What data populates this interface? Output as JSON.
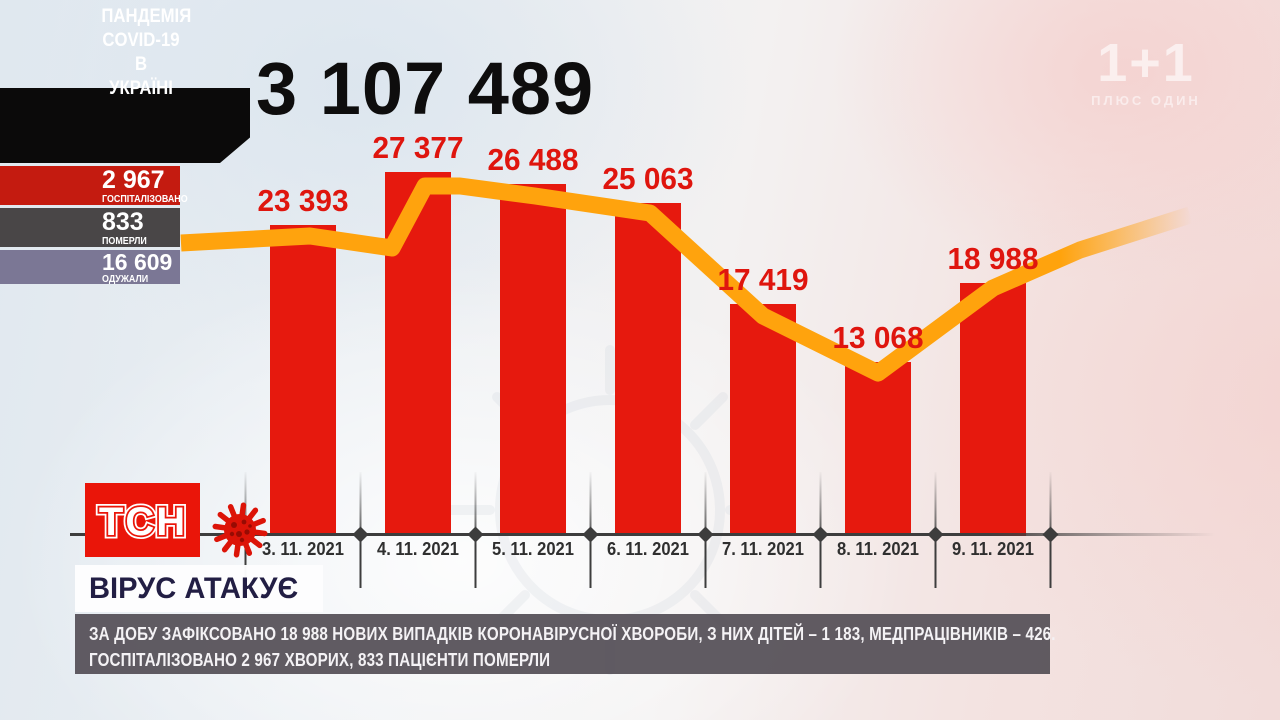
{
  "header": {
    "banner_lines": [
      "ПАНДЕМІЯ",
      "COVID-19",
      "В УКРАЇНІ"
    ],
    "total_cases": "3 107 489",
    "stats": [
      {
        "value": "2 967",
        "label": "ГОСПІТАЛІЗОВАНО",
        "color": "#c41b10"
      },
      {
        "value": "833",
        "label": "ПОМЕРЛИ",
        "color": "#494647"
      },
      {
        "value": "16 609",
        "label": "ОДУЖАЛИ",
        "color": "#7b7795"
      }
    ]
  },
  "watermark": {
    "logo": "1+1",
    "subtitle": "ПЛЮС ОДИН"
  },
  "chart_data": {
    "type": "bar",
    "title": "",
    "categories": [
      "3. 11. 2021",
      "4. 11. 2021",
      "5. 11. 2021",
      "6. 11. 2021",
      "7. 11. 2021",
      "8. 11. 2021",
      "9. 11. 2021"
    ],
    "values": [
      23393,
      27377,
      26488,
      25063,
      17419,
      13068,
      18988
    ],
    "value_labels": [
      "23 393",
      "27 377",
      "26 488",
      "25 063",
      "17 419",
      "13 068",
      "18 988"
    ],
    "xlabel": "",
    "ylabel": "",
    "ylim": [
      0,
      28000
    ],
    "grid": false,
    "legend": "none",
    "bar_color": "#e6190e",
    "label_color": "#df150e",
    "trend_line_color": "#ffa30d",
    "axis_color": "#3d3d3d"
  },
  "branding": {
    "logo": "ТСН",
    "headline": "ВІРУС АТАКУЄ"
  },
  "ticker": {
    "line1": "ЗА ДОБУ ЗАФІКСОВАНО 18 988 НОВИХ ВИПАДКІВ КОРОНАВІРУСНОЇ ХВОРОБИ, З НИХ ДІТЕЙ – 1 183, МЕДПРАЦІВНИКІВ – 426.",
    "line2": "ГОСПІТАЛІЗОВАНО 2 967 ХВОРИХ, 833 ПАЦІЄНТИ ПОМЕРЛИ"
  }
}
